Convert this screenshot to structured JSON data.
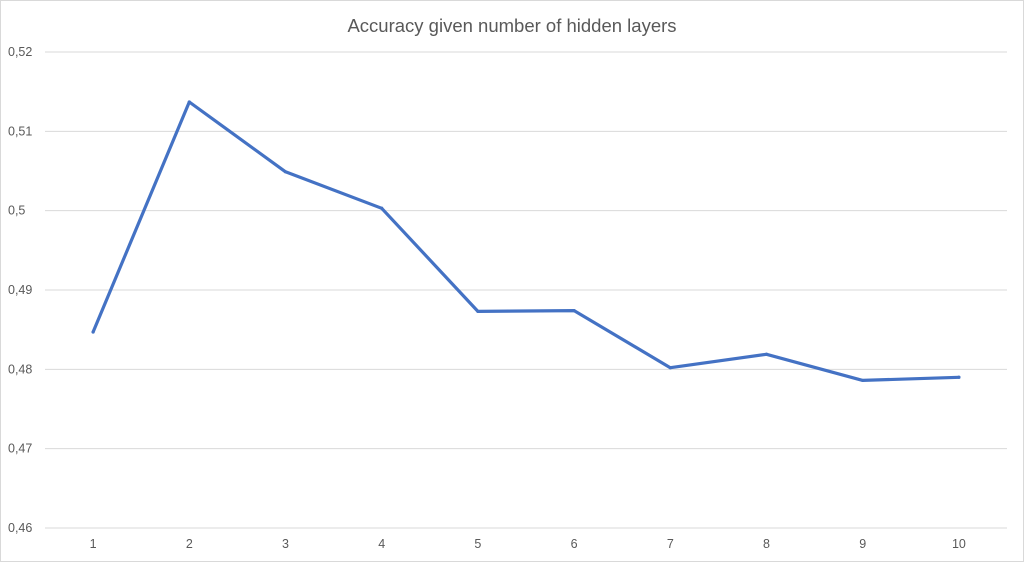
{
  "chart_data": {
    "type": "line",
    "title": "Accuracy given number of hidden layers",
    "xlabel": "",
    "ylabel": "",
    "categories": [
      "1",
      "2",
      "3",
      "4",
      "5",
      "6",
      "7",
      "8",
      "9",
      "10"
    ],
    "series": [
      {
        "name": "Accuracy",
        "color": "#4472c4",
        "values": [
          0.4847,
          0.5137,
          0.5049,
          0.5003,
          0.4873,
          0.4874,
          0.4802,
          0.4819,
          0.4786,
          0.479
        ]
      }
    ],
    "ylim": [
      0.46,
      0.52
    ],
    "yticks": [
      0.46,
      0.47,
      0.48,
      0.49,
      0.5,
      0.51,
      0.52
    ],
    "ytick_labels": [
      "0,46",
      "0,47",
      "0,48",
      "0,49",
      "0,5",
      "0,51",
      "0,52"
    ],
    "grid": true,
    "legend": "none"
  }
}
